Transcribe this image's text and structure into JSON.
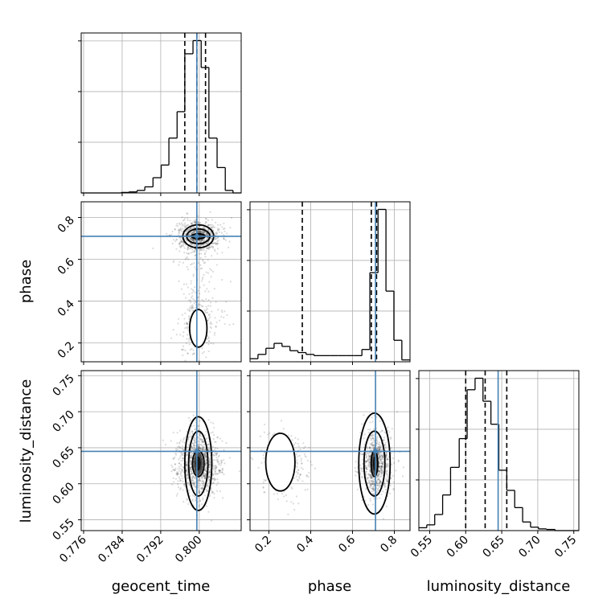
{
  "chart_data": {
    "type": "corner",
    "parameters": [
      "geocent_time",
      "phase",
      "luminosity_distance"
    ],
    "axis_labels": {
      "geocent_time": "geocent_time",
      "phase": "phase",
      "luminosity_distance": "luminosity_distance"
    },
    "ranges": {
      "geocent_time": [
        0.7755,
        0.8087
      ],
      "phase": [
        0.11,
        0.875
      ],
      "luminosity_distance": [
        0.535,
        0.757
      ]
    },
    "ticks": {
      "geocent_time": [
        "0.776",
        "0.784",
        "0.792",
        "0.800"
      ],
      "phase": [
        "0.2",
        "0.4",
        "0.6",
        "0.8"
      ],
      "luminosity_distance": [
        "0.55",
        "0.60",
        "0.65",
        "0.70",
        "0.75"
      ]
    },
    "truths": {
      "geocent_time": 0.7995,
      "phase": 0.71,
      "luminosity_distance": 0.645
    },
    "quantiles": {
      "geocent_time": [
        0.797,
        0.7995,
        0.8013
      ],
      "phase": [
        0.36,
        0.69,
        0.715
      ],
      "luminosity_distance": [
        0.6,
        0.627,
        0.657
      ]
    },
    "histograms": {
      "geocent_time": {
        "bin_edges": [
          0.7755,
          0.7771,
          0.7788,
          0.7804,
          0.7821,
          0.7838,
          0.7854,
          0.7871,
          0.7887,
          0.7904,
          0.7921,
          0.7937,
          0.7954,
          0.797,
          0.7987,
          0.8004,
          0.802,
          0.8037,
          0.8054,
          0.807,
          0.8087
        ],
        "counts": [
          0,
          0,
          0,
          0,
          0,
          1,
          2,
          5,
          12,
          30,
          55,
          108,
          160,
          274,
          300,
          247,
          108,
          50,
          5,
          0
        ]
      },
      "phase": {
        "bin_edges": [
          0.11,
          0.148,
          0.186,
          0.225,
          0.263,
          0.301,
          0.339,
          0.378,
          0.416,
          0.454,
          0.492,
          0.53,
          0.568,
          0.607,
          0.645,
          0.683,
          0.722,
          0.76,
          0.798,
          0.836,
          0.875
        ],
        "counts": [
          5,
          12,
          22,
          30,
          25,
          18,
          15,
          12,
          10,
          10,
          10,
          10,
          10,
          10,
          20,
          145,
          248,
          115,
          35,
          3
        ]
      },
      "luminosity_distance": {
        "bin_edges": [
          0.535,
          0.546,
          0.557,
          0.568,
          0.579,
          0.591,
          0.602,
          0.613,
          0.624,
          0.635,
          0.646,
          0.657,
          0.668,
          0.679,
          0.69,
          0.701,
          0.712,
          0.724,
          0.735,
          0.746,
          0.757
        ],
        "counts": [
          5,
          10,
          28,
          62,
          110,
          160,
          245,
          265,
          225,
          185,
          105,
          70,
          40,
          15,
          6,
          3,
          2,
          0,
          0,
          0
        ]
      }
    },
    "contour_panels": [
      {
        "x": "geocent_time",
        "y": "phase"
      },
      {
        "x": "geocent_time",
        "y": "luminosity_distance"
      },
      {
        "x": "phase",
        "y": "luminosity_distance"
      }
    ],
    "colors": {
      "truth": "#4682b4",
      "histogram": "#000000",
      "quantile": "#000000",
      "grid": "#b0b0b0",
      "points": "#000000"
    },
    "grid": true,
    "legend": "none"
  }
}
